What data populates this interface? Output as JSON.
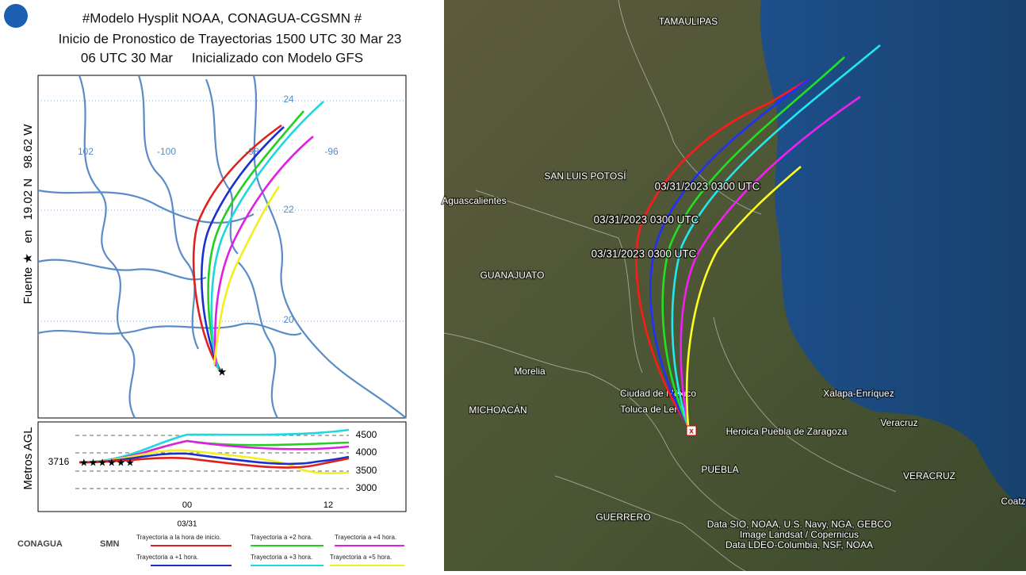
{
  "left_panel": {
    "header": {
      "line1": "#Modelo Hysplit NOAA, CONAGUA-CGSMN #",
      "line2": "Inicio de Pronostico de Trayectorias 1500 UTC 30 Mar 23",
      "line3": "06 UTC 30 Mar     Inicializado con Modelo GFS"
    },
    "side_label": "Fuente ★   en   19.02 N   98.62 W",
    "map_labels": {
      "lon": [
        "102",
        "-100",
        "-98",
        "-96"
      ],
      "lat": [
        "24",
        "22",
        "20"
      ]
    },
    "height_panel": {
      "y_label": "Metros AGL",
      "source_height": "3716",
      "yticks": [
        "4500",
        "4000",
        "3500",
        "3000"
      ],
      "xticks": [
        "00",
        "12"
      ],
      "date": "03/31"
    },
    "legend": [
      "Trayectoria a la hora de inicio.",
      "Trayectoria a +1 hora.",
      "Trayectoria a +2 hora.",
      "Trayectoria a +3 hora.",
      "Trayectoria a +4 hora.",
      "Trayectoria a +5 hora."
    ],
    "logos": [
      "CONAGUA",
      "SMN"
    ]
  },
  "right_panel": {
    "labels": [
      "TAMAULIPAS",
      "SAN LUIS POTOSÍ",
      "Aguascalientes",
      "GUANAJUATO",
      "Morelia",
      "MICHOACÁN",
      "Ciudad de México",
      "Toluca de Lerdo",
      "Heroica Puebla de Zaragoza",
      "Xalapa-Enríquez",
      "Veracruz",
      "VERACRUZ",
      "PUEBLA",
      "GUERRERO",
      "Coatz"
    ],
    "time_labels": [
      "03/31/2023 0300 UTC",
      "03/31/2023 0300 UTC",
      "03/31/2023 0300 UTC"
    ],
    "credits": [
      "Data SIO, NOAA, U.S. Navy, NGA, GEBCO",
      "Image Landsat / Copernicus",
      "Data LDEO-Columbia, NSF, NOAA"
    ]
  }
}
